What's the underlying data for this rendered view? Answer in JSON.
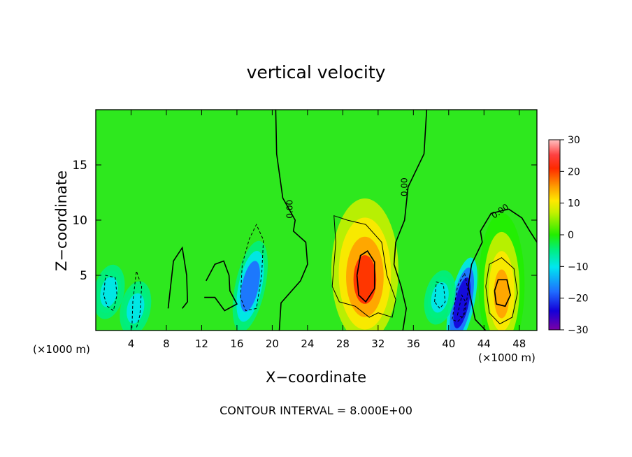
{
  "chart_data": {
    "type": "heatmap",
    "title": "vertical velocity",
    "xlabel": "X−coordinate",
    "ylabel": "Z−coordinate",
    "x_unit_left": "(×1000 m)",
    "x_unit_right": "(×1000 m)",
    "footer": "CONTOUR INTERVAL = 8.000E+00",
    "xlim": [
      0,
      50
    ],
    "ylim": [
      0,
      20
    ],
    "x_ticks": [
      4,
      8,
      12,
      16,
      20,
      24,
      28,
      32,
      36,
      40,
      44,
      48
    ],
    "y_ticks": [
      5,
      10,
      15
    ],
    "colorbar": {
      "range": [
        -30,
        30
      ],
      "ticks": [
        30,
        20,
        10,
        0,
        -10,
        -20,
        -30
      ],
      "tick_labels": [
        "30",
        "20",
        "10",
        "0",
        "−10",
        "−20",
        "−30"
      ]
    },
    "contour_interval": 8.0,
    "zero_contour_labels": [
      "0.00",
      "0.00",
      "0.00"
    ],
    "features": [
      {
        "kind": "updraft",
        "x": 30.5,
        "z": 4.5,
        "peak": 22
      },
      {
        "kind": "updraft",
        "x": 46.0,
        "z": 3.2,
        "peak": 17
      },
      {
        "kind": "downdraft",
        "x": 41.5,
        "z": 2.5,
        "peak": -24
      },
      {
        "kind": "downdraft",
        "x": 17.5,
        "z": 4.0,
        "peak": -17
      },
      {
        "kind": "downdraft",
        "x": 1.5,
        "z": 3.5,
        "peak": -11
      },
      {
        "kind": "downdraft",
        "x": 4.5,
        "z": 2.0,
        "peak": -11
      },
      {
        "kind": "downdraft",
        "x": 39.0,
        "z": 3.0,
        "peak": -10
      }
    ]
  }
}
